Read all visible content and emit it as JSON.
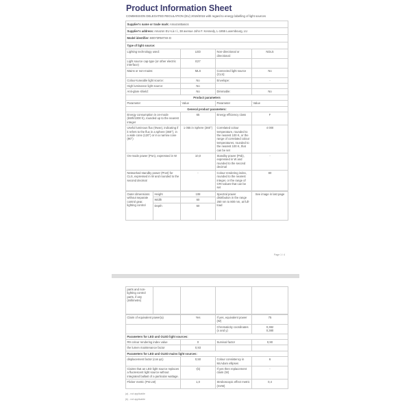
{
  "title": "Product Information Sheet",
  "regulation": "COMMISSION DELEGATED REGULATION (EU) 2019/2015 with regard to energy labelling of light sources",
  "supplier_name": {
    "label": "Supplier's name or trade mark:",
    "value": "AmazonBasics"
  },
  "supplier_address": {
    "label": "Supplier's address:",
    "value": "Amazon EU s.à r.l., 38 avenue John F. Kennedy, L-1855 Luxembourg, LU"
  },
  "model": {
    "label": "Model identifier:",
    "value": "B0073RM7XK-D"
  },
  "type_label": "Type of light source:",
  "type_rows": [
    [
      "Lighting technology used:",
      "LED",
      "Non-directional or directional:",
      "NDLS"
    ],
    [
      "Light source cap-type (or other electric interface)",
      "E27",
      "",
      ""
    ],
    [
      "Mains or non-mains:",
      "MLS",
      "Connected light source (CLS):",
      "No"
    ],
    [
      "Colour-tuneable light source:",
      "No",
      "Envelope:",
      "-"
    ],
    [
      "High luminance light source:",
      "No",
      "",
      ""
    ],
    [
      "Anti-glare shield:",
      "No",
      "Dimmable:",
      "No"
    ]
  ],
  "product_parameters": "Product parameters",
  "headers": [
    "Parameter",
    "Value",
    "Parameter",
    "Value"
  ],
  "general": "General product parameters:",
  "general_rows": [
    [
      "Energy consumption in on-mode (kWh/1000 h), rounded up to the nearest integer",
      "65",
      "Energy efficiency class",
      "F"
    ],
    [
      "Useful luminous flux (Φuse), indicating if it refers to the flux in a sphere (360°), in a wide cone (120°) or in a narrow cone (90°)",
      "1 055 in Sphere (360°)",
      "Correlated colour temperature, rounded to the nearest 100 K, or the range of correlated colour temperatures, rounded to the nearest 100 K, that can be set",
      "4 000"
    ],
    [
      "On-mode power (Pon), expressed in W",
      "10,0",
      "Standby power (Psb), expressed in W and rounded to the second decimal",
      "-"
    ],
    [
      "Networked standby power (Pnet) for CLS, expressed in W and rounded to the second decimal",
      "-",
      "Colour rendering index, rounded to the nearest integer, or the range of CRI-values that can be set",
      "80"
    ]
  ],
  "outer": {
    "label": "Outer dimensions without separate control gear, lighting control",
    "label_cont": "parts and non-lighting control parts, if any (millimetre)",
    "dims": [
      [
        "Height",
        "108"
      ],
      [
        "Width",
        "60"
      ],
      [
        "Depth",
        "60"
      ]
    ],
    "param": "Spectral power distribution in the range 250 nm to 800 nm, at full-load",
    "value": "See image in last page"
  },
  "page_number": "Page 1 / 4",
  "page2_rows": [
    [
      "Claim of equivalent power(a)",
      "Yes",
      "If yes, equivalent power (W)",
      "75"
    ],
    [
      "",
      "",
      "Chromaticity coordinates (x and y)",
      "0,382\n0,380"
    ]
  ],
  "led_section": "Parameters for LED and OLED light sources:",
  "led_rows": [
    [
      "R9 colour rendering index value",
      "0",
      "Survival factor",
      "0,90"
    ],
    [
      "the lumen maintenance factor",
      "0,93",
      "",
      ""
    ]
  ],
  "mains_section": "Parameters for LED and OLED mains light sources:",
  "mains_rows": [
    [
      "displacement factor (cos φ1)",
      "0,50",
      "Colour consistency in McAdam ellipses",
      "6"
    ],
    [
      "Claims that an LED light source replaces a fluorescent light source without integrated ballast of a particular wattage.",
      "-(b)",
      "If yes then replacement claim (W)",
      "-"
    ],
    [
      "Flicker metric (Pst LM)",
      "1,0",
      "Stroboscopic effect metric (SVM)",
      "0,4"
    ]
  ],
  "footnotes": [
    "(a) - not applicable",
    "(b) - not applicable"
  ]
}
